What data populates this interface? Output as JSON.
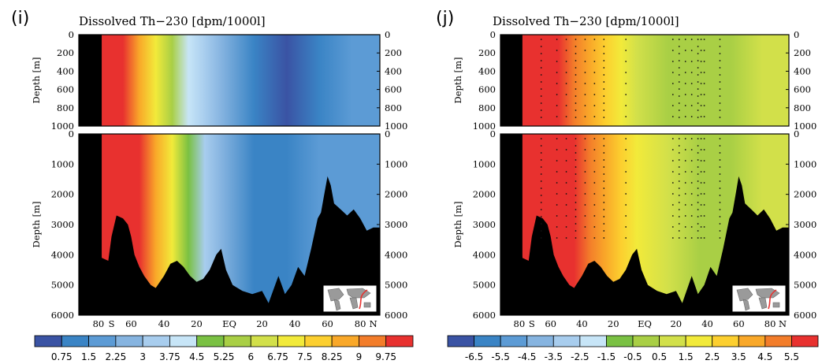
{
  "figure": {
    "colors": {
      "seq": [
        "#3a53a4",
        "#3a84c5",
        "#5c9bd5",
        "#86b4e0",
        "#a8cdee",
        "#c7e5f7",
        "#7ac143",
        "#a9cf45",
        "#d2e04a",
        "#f2ea3a",
        "#fccf2f",
        "#f9a829",
        "#f37d2a",
        "#e8312f"
      ],
      "div": [
        "#3a53a4",
        "#3a84c5",
        "#5c9bd5",
        "#86b4e0",
        "#a8cdee",
        "#c7e5f7",
        "#7ac143",
        "#a9cf45",
        "#d2e04a",
        "#f2ea3a",
        "#fccf2f",
        "#f9a829",
        "#f37d2a",
        "#e8312f"
      ],
      "land": "#000000"
    },
    "panels": [
      {
        "letter": "(i)",
        "title": "Dissolved Th−230 [dpm/1000l]",
        "map_icon": "world-map-transect-icon",
        "colorbar_labels": [
          "0.75",
          "1.5",
          "2.25",
          "3",
          "3.75",
          "4.5",
          "5.25",
          "6",
          "6.75",
          "7.5",
          "8.25",
          "9",
          "9.75"
        ]
      },
      {
        "letter": "(j)",
        "title": "Dissolved Th−230 [dpm/1000l]",
        "map_icon": "world-map-transect-icon",
        "colorbar_labels": [
          "-6.5",
          "-5.5",
          "-4.5",
          "-3.5",
          "-2.5",
          "-1.5",
          "-0.5",
          "0.5",
          "1.5",
          "2.5",
          "3.5",
          "4.5",
          "5.5"
        ]
      }
    ]
  },
  "chart_data": [
    {
      "type": "heatmap",
      "title": "Dissolved Th−230 [dpm/1000l]",
      "subplot": "upper",
      "ylabel": "Depth [m]",
      "x_ticklabels": [
        "80",
        "S",
        "60",
        "40",
        "20",
        "EQ",
        "20",
        "40",
        "60",
        "80",
        "N"
      ],
      "y_ticklabels": [
        "0",
        "200",
        "400",
        "600",
        "800",
        "1000"
      ],
      "ylim": [
        1000,
        0
      ],
      "colorbar_levels": [
        0.75,
        1.5,
        2.25,
        3,
        3.75,
        4.5,
        5.25,
        6,
        6.75,
        7.5,
        8.25,
        9,
        9.75
      ],
      "gradient_stops_lat": [
        -65,
        -55,
        -45,
        -35,
        -25,
        -15,
        -5,
        15,
        35,
        55,
        75,
        85
      ],
      "gradient_stops_level": [
        13,
        11,
        9,
        7,
        5,
        4,
        3,
        1,
        0,
        1,
        2,
        2
      ]
    },
    {
      "type": "heatmap",
      "title": "Dissolved Th−230 [dpm/1000l]",
      "subplot": "lower",
      "ylabel": "Depth [m]",
      "x_ticklabels": [
        "80",
        "S",
        "60",
        "40",
        "20",
        "EQ",
        "20",
        "40",
        "60",
        "80",
        "N"
      ],
      "y_ticklabels": [
        "0",
        "1000",
        "2000",
        "3000",
        "4000",
        "5000",
        "6000"
      ],
      "ylim": [
        6000,
        0
      ],
      "colorbar_levels": [
        0.75,
        1.5,
        2.25,
        3,
        3.75,
        4.5,
        5.25,
        6,
        6.75,
        7.5,
        8.25,
        9,
        9.75
      ],
      "gradient_stops_lat": [
        -65,
        -55,
        -45,
        -35,
        -25,
        -15,
        -5,
        15,
        35,
        55,
        75,
        85
      ],
      "gradient_stops_level": [
        13,
        13,
        11,
        9,
        6,
        4,
        3,
        1,
        1,
        2,
        2,
        2
      ]
    },
    {
      "type": "heatmap",
      "title": "Dissolved Th−230 [dpm/1000l]",
      "subplot": "upper",
      "ylabel": "Depth [m]",
      "x_ticklabels": [
        "80",
        "S",
        "60",
        "40",
        "20",
        "EQ",
        "20",
        "40",
        "60",
        "80",
        "N"
      ],
      "y_ticklabels": [
        "0",
        "200",
        "400",
        "600",
        "800",
        "1000"
      ],
      "ylim": [
        1000,
        0
      ],
      "colorbar_levels": [
        -6.5,
        -5.5,
        -4.5,
        -3.5,
        -2.5,
        -1.5,
        -0.5,
        0.5,
        1.5,
        2.5,
        3.5,
        4.5,
        5.5
      ],
      "gradient_stops_lat": [
        -65,
        -55,
        -45,
        -35,
        -25,
        -15,
        -5,
        15,
        35,
        55,
        75,
        85
      ],
      "gradient_stops_level": [
        13,
        13,
        12,
        11,
        10,
        9,
        8,
        7,
        7,
        7,
        8,
        8
      ]
    },
    {
      "type": "heatmap",
      "title": "Dissolved Th−230 [dpm/1000l]",
      "subplot": "lower",
      "ylabel": "Depth [m]",
      "x_ticklabels": [
        "80",
        "S",
        "60",
        "40",
        "20",
        "EQ",
        "20",
        "40",
        "60",
        "80",
        "N"
      ],
      "y_ticklabels": [
        "0",
        "1000",
        "2000",
        "3000",
        "4000",
        "5000",
        "6000"
      ],
      "ylim": [
        6000,
        0
      ],
      "colorbar_levels": [
        -6.5,
        -5.5,
        -4.5,
        -3.5,
        -2.5,
        -1.5,
        -0.5,
        0.5,
        1.5,
        2.5,
        3.5,
        4.5,
        5.5
      ],
      "gradient_stops_lat": [
        -65,
        -55,
        -45,
        -35,
        -25,
        -15,
        -5,
        15,
        35,
        55,
        75,
        85
      ],
      "gradient_stops_level": [
        13,
        13,
        13,
        12,
        11,
        10,
        9,
        8,
        7,
        7,
        8,
        8
      ]
    }
  ]
}
